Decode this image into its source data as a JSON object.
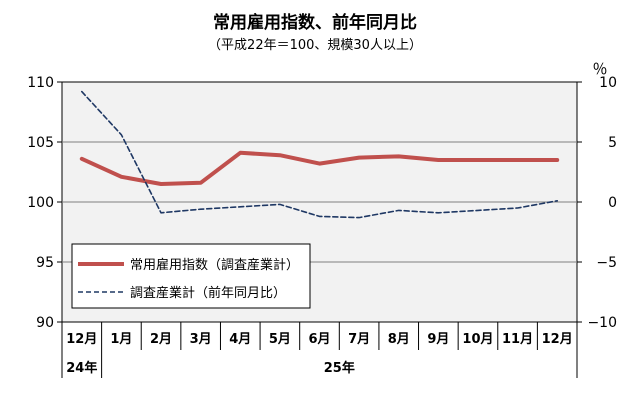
{
  "chart_data": {
    "type": "line",
    "title": "常用雇用指数、前年同月比",
    "subtitle": "（平成22年＝100、規模30人以上）",
    "left_axis": {
      "ylim": [
        90,
        110
      ],
      "ticks": [
        "90",
        "95",
        "100",
        "105",
        "110"
      ]
    },
    "right_axis": {
      "unit": "％",
      "ylim": [
        -10,
        10
      ],
      "ticks": [
        "−10",
        "−5",
        "0",
        "5",
        "10"
      ]
    },
    "categories": [
      "12月",
      "1月",
      "2月",
      "3月",
      "4月",
      "5月",
      "6月",
      "7月",
      "8月",
      "9月",
      "10月",
      "11月",
      "12月"
    ],
    "years": [
      {
        "label": "24年",
        "from": 0,
        "to": 0
      },
      {
        "label": "25年",
        "from": 1,
        "to": 12
      }
    ],
    "series": [
      {
        "name": "常用雇用指数（調査産業計）",
        "axis": "left",
        "color": "#c0504d",
        "style": "solid",
        "values": [
          103.6,
          102.1,
          101.5,
          101.6,
          104.1,
          103.9,
          103.2,
          103.7,
          103.8,
          103.5,
          103.5,
          103.5,
          103.5
        ]
      },
      {
        "name": "調査産業計（前年同月比）",
        "axis": "right",
        "color": "#1f3864",
        "style": "dashed",
        "values": [
          9.2,
          5.6,
          -0.9,
          -0.6,
          -0.4,
          -0.2,
          -1.2,
          -1.3,
          -0.7,
          -0.9,
          -0.7,
          -0.5,
          0.1
        ]
      }
    ],
    "grid": true,
    "legend_position": "lower-left"
  }
}
